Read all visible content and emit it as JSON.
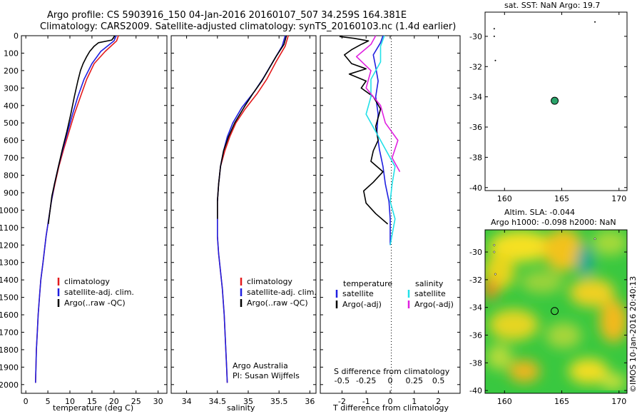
{
  "header": {
    "line1": "Argo profile: CS 5903916_150 04-Jan-2016 20160107_507 34.259S 164.381E",
    "line2": "Climatology: CARS2009. Satellite-adjusted climatology: synTS_20160103.nc (1.4d earlier)"
  },
  "colors": {
    "climatology": "#e31a1c",
    "satellite": "#1f1fe0",
    "argo": "#000000",
    "sal_satellite": "#22e0e8",
    "sal_argo": "#e020e0",
    "float_marker": "#2aa36a"
  },
  "chart_data": [
    {
      "type": "line",
      "id": "temperature",
      "xlabel": "temperature (deg C)",
      "xlim": [
        -1,
        32
      ],
      "xticks": [
        0,
        5,
        10,
        15,
        20,
        25,
        30
      ],
      "ylim": [
        0,
        2050
      ],
      "yticks": [
        0,
        100,
        200,
        300,
        400,
        500,
        600,
        700,
        800,
        900,
        1000,
        1100,
        1200,
        1300,
        1400,
        1500,
        1600,
        1700,
        1800,
        1900,
        2000
      ],
      "legend": [
        "climatology",
        "satellite-adj. clim.",
        "Argo(..raw -QC)"
      ],
      "series": [
        {
          "name": "climatology",
          "color": "#e31a1c",
          "points": [
            [
              21,
              0
            ],
            [
              20.6,
              30
            ],
            [
              18,
              90
            ],
            [
              15.5,
              160
            ],
            [
              13.8,
              250
            ],
            [
              12.4,
              350
            ],
            [
              11,
              450
            ],
            [
              9.8,
              550
            ],
            [
              8.6,
              650
            ],
            [
              7.5,
              750
            ],
            [
              6.6,
              850
            ],
            [
              5.8,
              950
            ],
            [
              5.2,
              1050
            ],
            [
              4.6,
              1150
            ],
            [
              3.9,
              1300
            ],
            [
              3.4,
              1400
            ],
            [
              3.1,
              1500
            ],
            [
              2.8,
              1600
            ],
            [
              2.6,
              1700
            ],
            [
              2.4,
              1800
            ],
            [
              2.3,
              1900
            ],
            [
              2.2,
              1990
            ]
          ]
        },
        {
          "name": "satellite-adj. clim.",
          "color": "#1f1fe0",
          "points": [
            [
              20.5,
              0
            ],
            [
              20,
              30
            ],
            [
              17,
              90
            ],
            [
              15,
              160
            ],
            [
              13.2,
              250
            ],
            [
              11.8,
              350
            ],
            [
              10.6,
              450
            ],
            [
              9.5,
              550
            ],
            [
              8.4,
              650
            ],
            [
              7.4,
              750
            ],
            [
              6.5,
              850
            ],
            [
              5.8,
              950
            ],
            [
              5.2,
              1050
            ],
            [
              4.6,
              1150
            ],
            [
              3.9,
              1300
            ],
            [
              3.4,
              1400
            ],
            [
              3.1,
              1500
            ],
            [
              2.8,
              1600
            ],
            [
              2.6,
              1700
            ],
            [
              2.4,
              1800
            ],
            [
              2.3,
              1900
            ],
            [
              2.2,
              1990
            ]
          ]
        },
        {
          "name": "Argo(..raw -QC)",
          "color": "#000000",
          "points": [
            [
              20.2,
              0
            ],
            [
              19.5,
              25
            ],
            [
              16.5,
              40
            ],
            [
              15.5,
              60
            ],
            [
              14.5,
              90
            ],
            [
              13.8,
              120
            ],
            [
              13,
              160
            ],
            [
              12.4,
              200
            ],
            [
              11.8,
              260
            ],
            [
              11,
              350
            ],
            [
              10.2,
              450
            ],
            [
              9.3,
              550
            ],
            [
              8.3,
              650
            ],
            [
              7.4,
              750
            ],
            [
              6.5,
              850
            ],
            [
              5.9,
              920
            ],
            [
              5.5,
              1000
            ],
            [
              5.1,
              1080
            ]
          ]
        }
      ]
    },
    {
      "type": "line",
      "id": "salinity",
      "xlabel": "salinity",
      "xlim": [
        33.75,
        36.1
      ],
      "xticks": [
        34,
        34.5,
        35,
        35.5,
        36
      ],
      "ylim": [
        0,
        2050
      ],
      "legend": [
        "climatology",
        "satellite-adj. clim.",
        "Argo(..raw -QC)"
      ],
      "annotation": [
        "Argo Australia",
        "PI: Susan Wijffels"
      ],
      "series": [
        {
          "name": "climatology",
          "color": "#e31a1c",
          "points": [
            [
              35.65,
              0
            ],
            [
              35.6,
              60
            ],
            [
              35.45,
              150
            ],
            [
              35.3,
              250
            ],
            [
              35.15,
              330
            ],
            [
              34.95,
              420
            ],
            [
              34.8,
              500
            ],
            [
              34.7,
              580
            ],
            [
              34.62,
              660
            ],
            [
              34.55,
              750
            ],
            [
              34.52,
              850
            ],
            [
              34.5,
              950
            ],
            [
              34.5,
              1050
            ],
            [
              34.5,
              1150
            ],
            [
              34.52,
              1250
            ],
            [
              34.55,
              1350
            ],
            [
              34.58,
              1450
            ],
            [
              34.61,
              1600
            ],
            [
              34.63,
              1750
            ],
            [
              34.65,
              1900
            ],
            [
              34.66,
              1990
            ]
          ]
        },
        {
          "name": "satellite-adj. clim.",
          "color": "#1f1fe0",
          "points": [
            [
              35.6,
              0
            ],
            [
              35.55,
              60
            ],
            [
              35.4,
              150
            ],
            [
              35.25,
              240
            ],
            [
              35.1,
              320
            ],
            [
              34.9,
              410
            ],
            [
              34.75,
              500
            ],
            [
              34.66,
              580
            ],
            [
              34.6,
              660
            ],
            [
              34.55,
              750
            ],
            [
              34.52,
              850
            ],
            [
              34.5,
              950
            ],
            [
              34.5,
              1050
            ],
            [
              34.5,
              1150
            ],
            [
              34.52,
              1250
            ],
            [
              34.55,
              1350
            ],
            [
              34.58,
              1450
            ],
            [
              34.61,
              1600
            ],
            [
              34.63,
              1750
            ],
            [
              34.65,
              1900
            ],
            [
              34.66,
              1990
            ]
          ]
        },
        {
          "name": "Argo(..raw -QC)",
          "color": "#000000",
          "points": [
            [
              35.62,
              0
            ],
            [
              35.58,
              50
            ],
            [
              35.45,
              120
            ],
            [
              35.32,
              200
            ],
            [
              35.22,
              260
            ],
            [
              35.08,
              330
            ],
            [
              34.95,
              400
            ],
            [
              34.78,
              500
            ],
            [
              34.68,
              580
            ],
            [
              34.6,
              660
            ],
            [
              34.55,
              750
            ],
            [
              34.52,
              850
            ],
            [
              34.5,
              950
            ],
            [
              34.5,
              1050
            ]
          ]
        }
      ]
    },
    {
      "type": "line",
      "id": "difference",
      "xlabel": "T difference from climatology",
      "xlabel_top": "S difference from climatology",
      "xlim": [
        -2.9,
        2.9
      ],
      "xticks": [
        -2,
        -1,
        0,
        1,
        2
      ],
      "sticks": [
        "-0.5",
        "-0.25",
        "0",
        "0.25",
        "0.5"
      ],
      "legend_temperature": [
        "temperature",
        "satellite",
        "Argo(-adj)"
      ],
      "legend_salinity": [
        "salinity",
        "satellite",
        "Argo(-adj)"
      ],
      "series": [
        {
          "name": "temperature satellite",
          "color": "#1f1fe0",
          "points": [
            [
              -0.3,
              0
            ],
            [
              -0.4,
              40
            ],
            [
              -0.7,
              110
            ],
            [
              -0.6,
              180
            ],
            [
              -0.5,
              260
            ],
            [
              -0.6,
              350
            ],
            [
              -0.5,
              450
            ],
            [
              -0.55,
              550
            ],
            [
              -0.45,
              650
            ],
            [
              -0.3,
              750
            ],
            [
              -0.2,
              850
            ],
            [
              -0.05,
              950
            ],
            [
              0,
              1050
            ],
            [
              0,
              1200
            ]
          ]
        },
        {
          "name": "temperature Argo(-adj)",
          "color": "#000000",
          "points": [
            [
              -2.1,
              5
            ],
            [
              -1.5,
              15
            ],
            [
              -0.9,
              30
            ],
            [
              -1.2,
              50
            ],
            [
              -1.6,
              80
            ],
            [
              -1.9,
              110
            ],
            [
              -1.6,
              160
            ],
            [
              -1.0,
              190
            ],
            [
              -1.7,
              220
            ],
            [
              -1.0,
              260
            ],
            [
              -1.2,
              300
            ],
            [
              -0.7,
              350
            ],
            [
              -0.4,
              420
            ],
            [
              -0.6,
              520
            ],
            [
              -0.5,
              600
            ],
            [
              -0.7,
              660
            ],
            [
              -0.8,
              720
            ],
            [
              -0.3,
              780
            ],
            [
              -0.7,
              840
            ],
            [
              -1.1,
              890
            ],
            [
              -1.0,
              960
            ],
            [
              -0.6,
              1020
            ],
            [
              -0.1,
              1080
            ]
          ]
        },
        {
          "name": "salinity satellite",
          "color": "#22e0e8",
          "points": [
            [
              -0.06,
              0
            ],
            [
              -0.1,
              60
            ],
            [
              -0.1,
              150
            ],
            [
              -0.2,
              250
            ],
            [
              -0.2,
              350
            ],
            [
              -0.25,
              450
            ],
            [
              -0.15,
              550
            ],
            [
              -0.05,
              650
            ],
            [
              0.05,
              750
            ],
            [
              0.02,
              850
            ],
            [
              0,
              950
            ],
            [
              0.05,
              1050
            ],
            [
              0,
              1200
            ]
          ]
        },
        {
          "name": "salinity Argo(-adj)",
          "color": "#e020e0",
          "points": [
            [
              -0.15,
              0
            ],
            [
              -0.2,
              50
            ],
            [
              -0.35,
              120
            ],
            [
              -0.2,
              200
            ],
            [
              -0.25,
              300
            ],
            [
              -0.1,
              400
            ],
            [
              -0.05,
              500
            ],
            [
              0.08,
              600
            ],
            [
              0.02,
              700
            ],
            [
              0.1,
              780
            ]
          ]
        }
      ]
    },
    {
      "type": "scatter",
      "id": "sst_map",
      "title": "sat. SST: NaN Argo: 19.7",
      "xlim": [
        158.3,
        170.7
      ],
      "ylim": [
        -40.2,
        -28.4
      ],
      "xticks": [
        160,
        165,
        170
      ],
      "yticks": [
        -30,
        -32,
        -34,
        -36,
        -38,
        -40
      ],
      "float_position": [
        164.38,
        -34.26
      ]
    },
    {
      "type": "heatmap",
      "id": "sla_map",
      "title_line1": "Altim. SLA: -0.044",
      "title_line2": "Argo h1000: -0.098 h2000: NaN",
      "xlim": [
        158.3,
        170.7
      ],
      "ylim": [
        -40.2,
        -28.4
      ],
      "xticks": [
        160,
        165,
        170
      ],
      "yticks": [
        -30,
        -32,
        -34,
        -36,
        -38,
        -40
      ],
      "float_position": [
        164.38,
        -34.26
      ]
    }
  ],
  "credit": "©IMOS 10-Jan-2016 20:40:13"
}
